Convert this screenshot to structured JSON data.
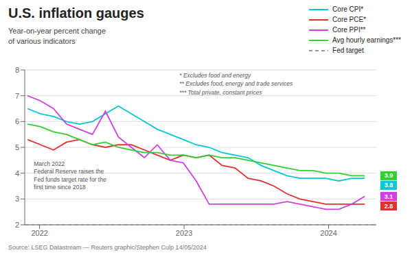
{
  "chart_data": {
    "type": "line",
    "title": "U.S. inflation gauges",
    "subtitle": "Year-on-year percent change\nof various indicators",
    "source": "Source: LSEG Datastream — Reuters graphic/Stephen Culp 14/05/2024",
    "x": [
      2021.917,
      2022.006731,
      2022.096462,
      2022.186192,
      2022.275923,
      2022.365654,
      2022.455385,
      2022.545115,
      2022.634846,
      2022.724577,
      2022.814308,
      2022.904038,
      2022.993769,
      2023.0835,
      2023.173231,
      2023.262962,
      2023.352692,
      2023.442423,
      2023.532154,
      2023.621885,
      2023.711615,
      2023.801346,
      2023.891077,
      2023.980808,
      2024.070538,
      2024.160269,
      2024.25
    ],
    "xlim": [
      2021.897,
      2024.33
    ],
    "xticks": [
      2022,
      2023,
      2024
    ],
    "ylim": [
      2,
      8
    ],
    "yticks": [
      2,
      3,
      4,
      5,
      6,
      7,
      8
    ],
    "grid": true,
    "legend": "upper right",
    "series": [
      {
        "name": "Core CPI*",
        "color": "#00c8d4",
        "values": [
          6.5,
          6.3,
          6.2,
          6.0,
          5.9,
          6.0,
          6.3,
          6.6,
          6.3,
          6.0,
          5.7,
          5.5,
          5.3,
          5.1,
          5.0,
          4.8,
          4.7,
          4.6,
          4.3,
          4.1,
          3.9,
          3.8,
          3.8,
          3.8,
          3.7,
          3.8,
          3.8
        ],
        "value_labels": [
          null,
          null,
          null,
          null,
          null,
          null,
          null,
          null,
          null,
          null,
          null,
          null,
          null,
          null,
          null,
          null,
          null,
          null,
          null,
          null,
          null,
          null,
          null,
          null,
          null,
          null,
          "3.8"
        ]
      },
      {
        "name": "Core PCE*",
        "color": "#e03030",
        "values": [
          5.3,
          5.1,
          4.9,
          5.2,
          5.3,
          5.1,
          5.0,
          5.1,
          5.1,
          4.9,
          4.7,
          4.5,
          4.7,
          4.6,
          4.7,
          4.3,
          4.2,
          3.8,
          3.7,
          3.5,
          3.2,
          3.0,
          2.9,
          2.8,
          2.8,
          2.8,
          2.8
        ],
        "value_labels": [
          null,
          null,
          null,
          null,
          null,
          null,
          null,
          null,
          null,
          null,
          null,
          null,
          null,
          null,
          null,
          null,
          null,
          null,
          null,
          null,
          null,
          null,
          null,
          null,
          null,
          null,
          "2.8"
        ]
      },
      {
        "name": "Core PPI**",
        "color": "#d040e0",
        "values": [
          7.0,
          6.8,
          6.5,
          5.9,
          5.7,
          5.5,
          6.4,
          5.4,
          5.0,
          4.6,
          5.1,
          4.5,
          4.4,
          3.7,
          2.8,
          2.8,
          2.8,
          2.8,
          2.8,
          2.8,
          2.9,
          2.8,
          2.7,
          2.6,
          2.6,
          2.8,
          3.1
        ],
        "value_labels": [
          null,
          null,
          null,
          null,
          null,
          null,
          null,
          null,
          null,
          null,
          null,
          null,
          null,
          null,
          null,
          null,
          null,
          null,
          null,
          null,
          null,
          null,
          null,
          null,
          null,
          null,
          "3.1"
        ]
      },
      {
        "name": "Avg hourly earnings***",
        "color": "#30d030",
        "values": [
          5.9,
          5.8,
          5.6,
          5.5,
          5.3,
          5.1,
          5.2,
          5.0,
          4.9,
          4.8,
          4.8,
          4.7,
          4.7,
          4.6,
          4.7,
          4.6,
          4.6,
          4.5,
          4.4,
          4.3,
          4.2,
          4.1,
          4.1,
          4.0,
          4.0,
          3.9,
          3.9
        ],
        "value_labels": [
          null,
          null,
          null,
          null,
          null,
          null,
          null,
          null,
          null,
          null,
          null,
          null,
          null,
          null,
          null,
          null,
          null,
          null,
          null,
          null,
          null,
          null,
          null,
          null,
          null,
          null,
          "3.9"
        ]
      }
    ],
    "reference_line": {
      "name": "Fed target",
      "y": 2.0,
      "color": "#999999",
      "line_style": "dashed"
    },
    "footnotes": [
      "* Excludes food and energy",
      "** Excludes food, energy and trade services",
      "*** Total private, constant prices"
    ],
    "annotations": [
      {
        "text": "March 2022\nFederal Reserve raises the\nFed funds target rate for the\nfirst time since 2018",
        "x": 2021.96,
        "y": 4.5
      }
    ]
  }
}
